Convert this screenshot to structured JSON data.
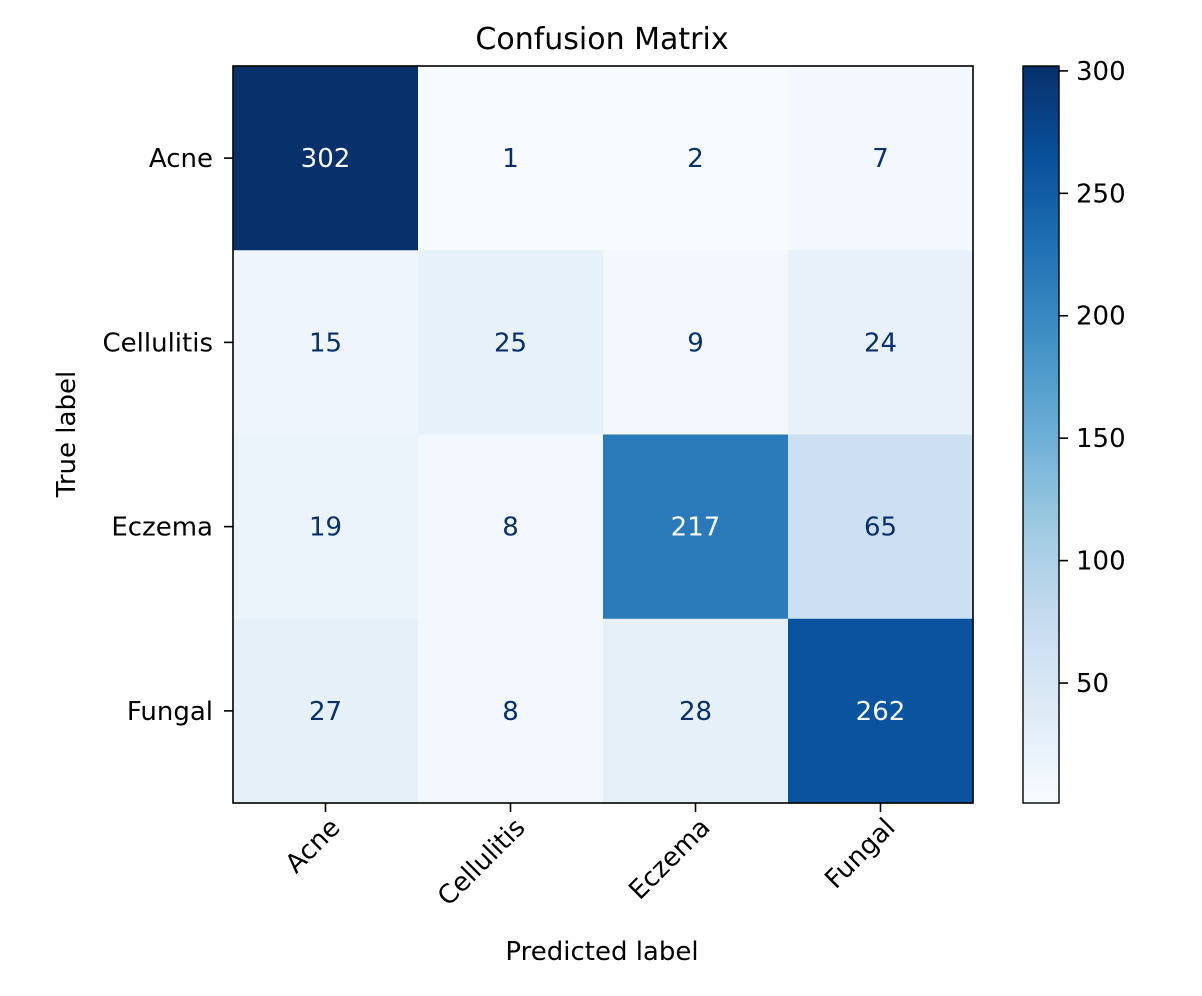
{
  "chart_data": {
    "type": "heatmap",
    "title": "Confusion Matrix",
    "xlabel": "Predicted label",
    "ylabel": "True label",
    "row_labels": [
      "Acne",
      "Cellulitis",
      "Eczema",
      "Fungal"
    ],
    "col_labels": [
      "Acne",
      "Cellulitis",
      "Eczema",
      "Fungal"
    ],
    "matrix": [
      [
        302,
        1,
        2,
        7
      ],
      [
        15,
        25,
        9,
        24
      ],
      [
        19,
        8,
        217,
        65
      ],
      [
        27,
        8,
        28,
        262
      ]
    ],
    "colormap": "Blues",
    "colorbar": {
      "ticks": [
        "50",
        "100",
        "150",
        "200",
        "250",
        "300"
      ],
      "tick_values": [
        50,
        100,
        150,
        200,
        250,
        300
      ],
      "range": [
        1,
        302
      ]
    },
    "x_tick_rotation": 45,
    "text_dark_color": "#08306b",
    "text_light_color": "#f7fbff"
  }
}
